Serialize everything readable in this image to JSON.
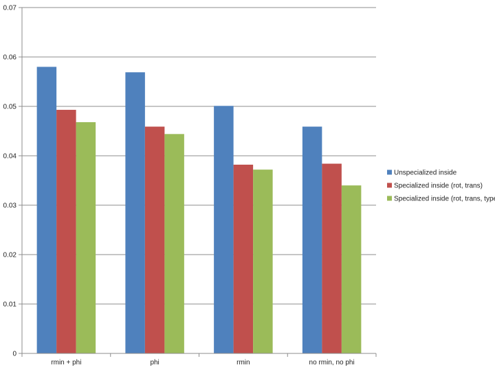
{
  "chart_data": {
    "type": "bar",
    "categories": [
      "rmin + phi",
      "phi",
      "rmin",
      "no rmin, no phi"
    ],
    "series": [
      {
        "name": "Unspecialized inside",
        "color": "#4F81BD",
        "values": [
          0.058,
          0.0569,
          0.0501,
          0.0459
        ]
      },
      {
        "name": "Specialized inside (rot, trans)",
        "color": "#C0504D",
        "values": [
          0.0493,
          0.0459,
          0.0382,
          0.0384
        ]
      },
      {
        "name": "Specialized inside (rot, trans, type)",
        "color": "#9BBB59",
        "values": [
          0.0468,
          0.0444,
          0.0372,
          0.034
        ]
      }
    ],
    "yticks": [
      "0",
      "0.01",
      "0.02",
      "0.03",
      "0.04",
      "0.05",
      "0.06",
      "0.07"
    ],
    "ylim": [
      0,
      0.07
    ],
    "grid": true,
    "legend_position": "right",
    "gridline_color": "#8c8c8c",
    "axis_color": "#8c8c8c"
  }
}
